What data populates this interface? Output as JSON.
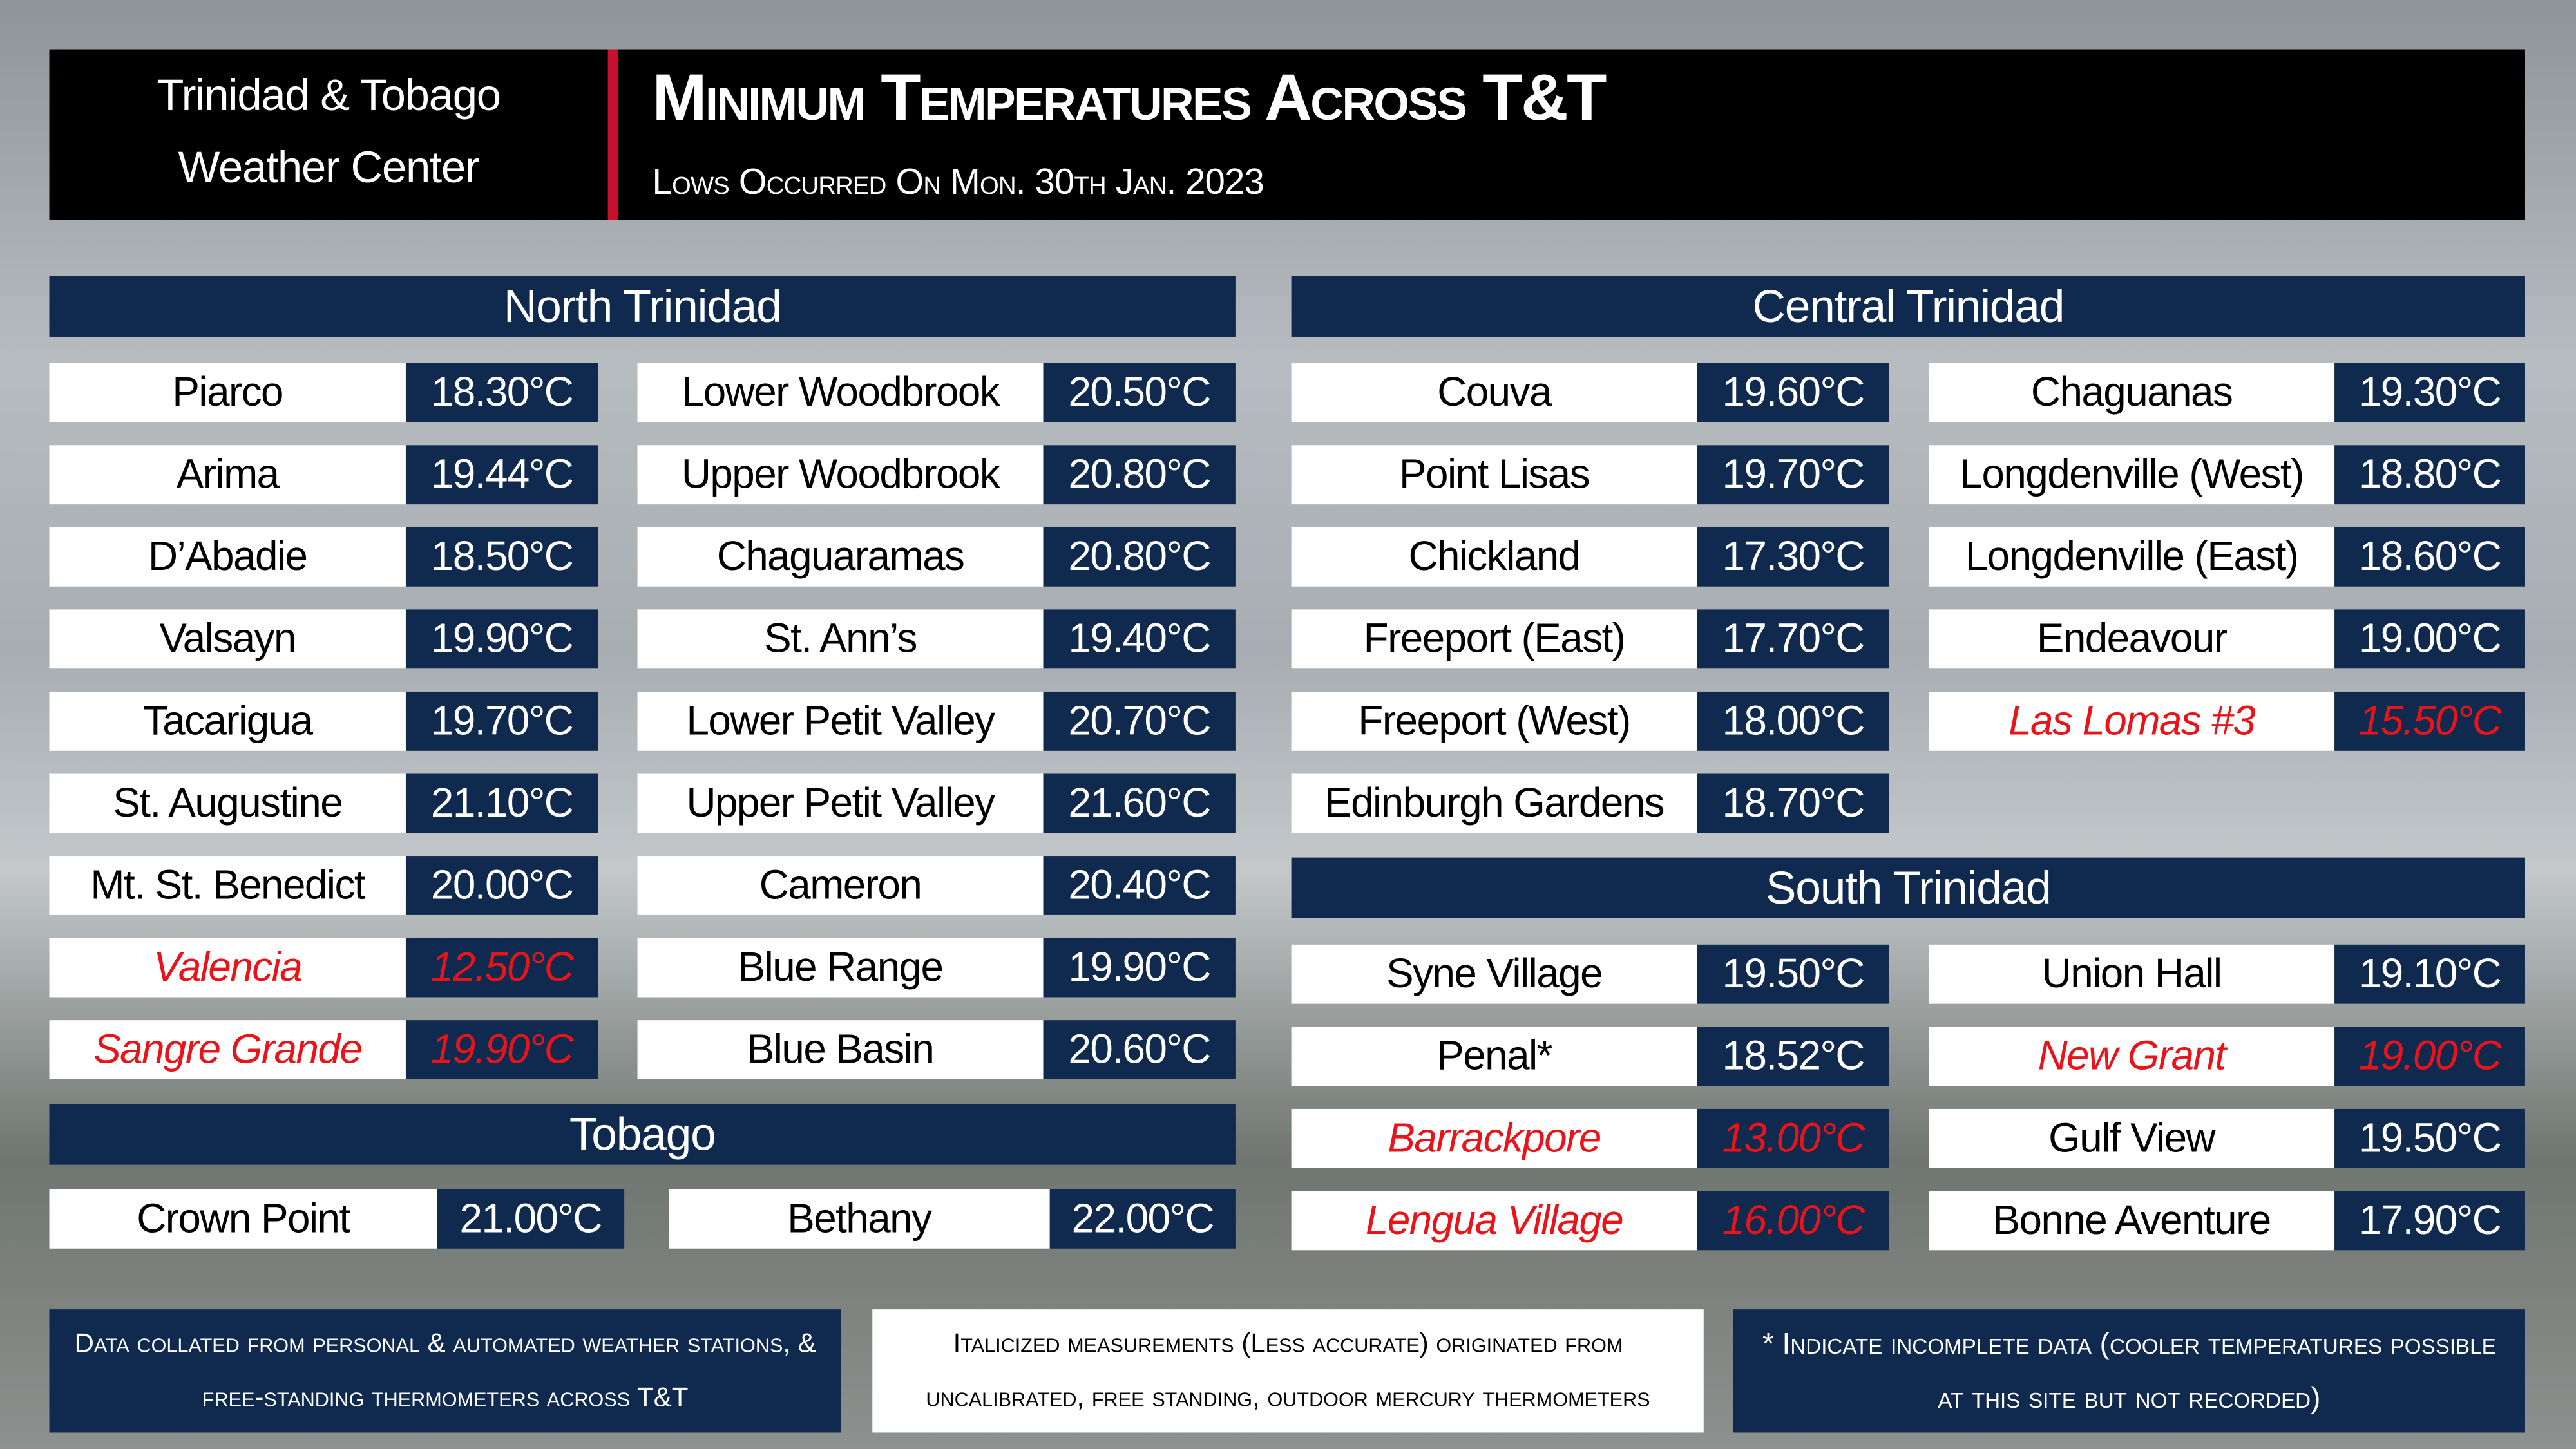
{
  "header": {
    "org_lines": [
      "Trinidad & Tobago",
      "Weather Center"
    ],
    "title": "Minimum Temperatures Across T&T",
    "subtitle": "Lows Occurred On Mon. 30th Jan. 2023"
  },
  "sections": [
    {
      "key": "north",
      "title": "North Trinidad",
      "columns": [
        [
          {
            "name": "Piarco",
            "value": "18.30°C"
          },
          {
            "name": "Arima",
            "value": "19.44°C"
          },
          {
            "name": "D’Abadie",
            "value": "18.50°C"
          },
          {
            "name": "Valsayn",
            "value": "19.90°C"
          },
          {
            "name": "Tacarigua",
            "value": "19.70°C"
          },
          {
            "name": "St. Augustine",
            "value": "21.10°C"
          },
          {
            "name": "Mt. St. Benedict",
            "value": "20.00°C"
          },
          {
            "name": "Valencia",
            "value": "12.50°C",
            "italic": true
          },
          {
            "name": "Sangre Grande",
            "value": "19.90°C",
            "italic": true
          }
        ],
        [
          {
            "name": "Lower Woodbrook",
            "value": "20.50°C"
          },
          {
            "name": "Upper Woodbrook",
            "value": "20.80°C"
          },
          {
            "name": "Chaguaramas",
            "value": "20.80°C"
          },
          {
            "name": "St. Ann’s",
            "value": "19.40°C"
          },
          {
            "name": "Lower Petit Valley",
            "value": "20.70°C"
          },
          {
            "name": "Upper Petit Valley",
            "value": "21.60°C"
          },
          {
            "name": "Cameron",
            "value": "20.40°C"
          },
          {
            "name": "Blue Range",
            "value": "19.90°C"
          },
          {
            "name": "Blue Basin",
            "value": "20.60°C"
          }
        ]
      ]
    },
    {
      "key": "tobago",
      "title": "Tobago",
      "columns": [
        [
          {
            "name": "Crown Point",
            "value": "21.00°C"
          }
        ],
        [
          {
            "name": "Bethany",
            "value": "22.00°C"
          }
        ]
      ]
    },
    {
      "key": "central",
      "title": "Central Trinidad",
      "columns": [
        [
          {
            "name": "Couva",
            "value": "19.60°C"
          },
          {
            "name": "Point Lisas",
            "value": "19.70°C"
          },
          {
            "name": "Chickland",
            "value": "17.30°C"
          },
          {
            "name": "Freeport (East)",
            "value": "17.70°C"
          },
          {
            "name": "Freeport (West)",
            "value": "18.00°C"
          },
          {
            "name": "Edinburgh Gardens",
            "value": "18.70°C"
          }
        ],
        [
          {
            "name": "Chaguanas",
            "value": "19.30°C"
          },
          {
            "name": "Longdenville (West)",
            "value": "18.80°C"
          },
          {
            "name": "Longdenville (East)",
            "value": "18.60°C"
          },
          {
            "name": "Endeavour",
            "value": "19.00°C"
          },
          {
            "name": "Las Lomas #3",
            "value": "15.50°C",
            "italic": true
          }
        ]
      ]
    },
    {
      "key": "south",
      "title": "South Trinidad",
      "columns": [
        [
          {
            "name": "Syne Village",
            "value": "19.50°C"
          },
          {
            "name": "Penal*",
            "value": "18.52°C"
          },
          {
            "name": "Barrackpore",
            "value": "13.00°C",
            "italic": true
          },
          {
            "name": "Lengua Village",
            "value": "16.00°C",
            "italic": true
          }
        ],
        [
          {
            "name": "Union Hall",
            "value": "19.10°C"
          },
          {
            "name": "New Grant",
            "value": "19.00°C",
            "italic": true
          },
          {
            "name": "Gulf View",
            "value": "19.50°C"
          },
          {
            "name": "Bonne Aventure",
            "value": "17.90°C"
          }
        ]
      ]
    }
  ],
  "footer": [
    "Data collated from personal & automated weather stations, & free-standing thermometers across T&T",
    "Italicized measurements (Less accurate) originated from uncalibrated, free standing, outdoor mercury thermometers",
    "* Indicate incomplete data (cooler temperatures possible at this site but not recorded)"
  ]
}
